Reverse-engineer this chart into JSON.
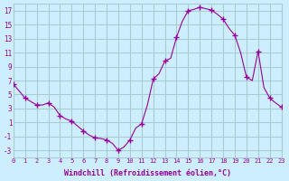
{
  "title": "",
  "xlabel": "Windchill (Refroidissement éolien,°C)",
  "ylabel": "",
  "bg_color": "#cceeff",
  "grid_color": "#aacccc",
  "line_color": "#990099",
  "marker_color": "#990099",
  "xlim": [
    0,
    23
  ],
  "ylim": [
    -4,
    18
  ],
  "yticks": [
    -3,
    -1,
    1,
    3,
    5,
    7,
    9,
    11,
    13,
    15,
    17
  ],
  "xticks": [
    0,
    1,
    2,
    3,
    4,
    5,
    6,
    7,
    8,
    9,
    10,
    11,
    12,
    13,
    14,
    15,
    16,
    17,
    18,
    19,
    20,
    21,
    22,
    23
  ],
  "x": [
    0,
    0.5,
    1,
    1.5,
    2,
    2.5,
    3,
    3.5,
    4,
    4.5,
    5,
    5.5,
    6,
    6.5,
    7,
    7.5,
    8,
    8.5,
    9,
    9.5,
    10,
    10.5,
    11,
    11.5,
    12,
    12.5,
    13,
    13.5,
    14,
    14.5,
    15,
    15.5,
    16,
    16.5,
    17,
    17.5,
    18,
    18.5,
    19,
    19.5,
    20,
    20.5,
    21,
    21.5,
    22,
    22.5,
    23
  ],
  "y": [
    6.5,
    5.5,
    4.5,
    4.0,
    3.5,
    3.5,
    3.8,
    3.2,
    2.0,
    1.5,
    1.2,
    0.5,
    -0.2,
    -0.8,
    -1.2,
    -1.3,
    -1.5,
    -2.0,
    -3.0,
    -2.5,
    -1.5,
    0.2,
    0.8,
    3.5,
    7.2,
    8.0,
    9.8,
    10.2,
    13.2,
    15.5,
    17.0,
    17.2,
    17.5,
    17.3,
    17.1,
    16.5,
    15.8,
    14.5,
    13.5,
    11.0,
    7.5,
    7.0,
    11.2,
    6.0,
    4.5,
    3.8,
    3.2
  ],
  "marker_x": [
    0,
    1,
    2,
    3,
    4,
    5,
    6,
    7,
    8,
    9,
    10,
    11,
    12,
    13,
    14,
    15,
    16,
    17,
    18,
    19,
    20,
    21,
    22,
    23
  ],
  "marker_y": [
    6.5,
    4.5,
    3.5,
    3.8,
    2.0,
    1.2,
    -0.2,
    -1.2,
    -1.5,
    -3.0,
    -1.5,
    0.8,
    7.2,
    9.8,
    13.2,
    17.0,
    17.5,
    17.1,
    15.8,
    13.5,
    7.5,
    11.2,
    4.5,
    3.2
  ]
}
